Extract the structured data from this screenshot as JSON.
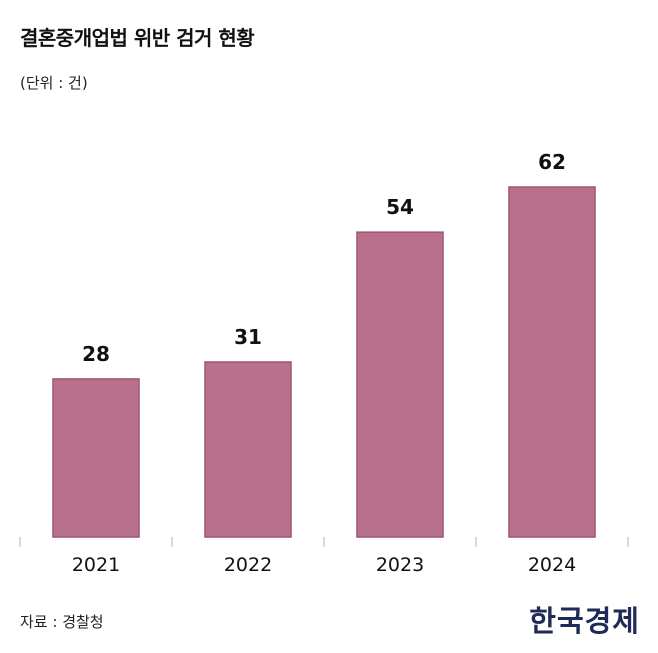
{
  "title": "결혼중개업법 위반 검거 현황",
  "unit": "(단위 : 건)",
  "source": "자료 : 경찰청",
  "logo_text": "한국경제",
  "colors": {
    "bar": "#b8708c",
    "bar_stroke": "#9e5574",
    "axis": "#cccccc",
    "label": "#111111"
  },
  "chart_data": {
    "type": "bar",
    "title": "결혼중개업법 위반 검거 현황",
    "xlabel": "",
    "ylabel": "",
    "categories": [
      "2021",
      "2022",
      "2023",
      "2024"
    ],
    "values": [
      28,
      31,
      54,
      62
    ],
    "ylim": [
      0,
      62
    ],
    "grid": false,
    "data_labels": true
  }
}
